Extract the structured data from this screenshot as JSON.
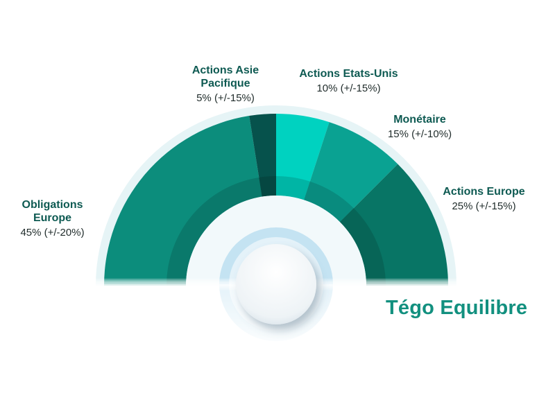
{
  "chart_data": {
    "type": "pie",
    "layout": "half-donut",
    "title": "Tégo Equilibre",
    "slices": [
      {
        "name": "Obligations Europe",
        "name_lines": [
          "Obligations",
          "Europe"
        ],
        "value": 45,
        "label": "45% (+/-20%)",
        "color": "#0c8d7c"
      },
      {
        "name": "Actions Asie Pacifique",
        "name_lines": [
          "Actions Asie",
          "Pacifique"
        ],
        "value": 5,
        "label": "5% (+/-15%)",
        "color": "#06524c"
      },
      {
        "name": "Actions Etats-Unis",
        "name_lines": [
          "Actions Etats-Unis"
        ],
        "value": 10,
        "label": "10% (+/-15%)",
        "color": "#00d2c0"
      },
      {
        "name": "Monétaire",
        "name_lines": [
          "Monétaire"
        ],
        "value": 15,
        "label": "15% (+/-10%)",
        "color": "#0aa292"
      },
      {
        "name": "Actions Europe",
        "name_lines": [
          "Actions Europe"
        ],
        "value": 25,
        "label": "25% (+/-15%)",
        "color": "#087565"
      }
    ]
  }
}
